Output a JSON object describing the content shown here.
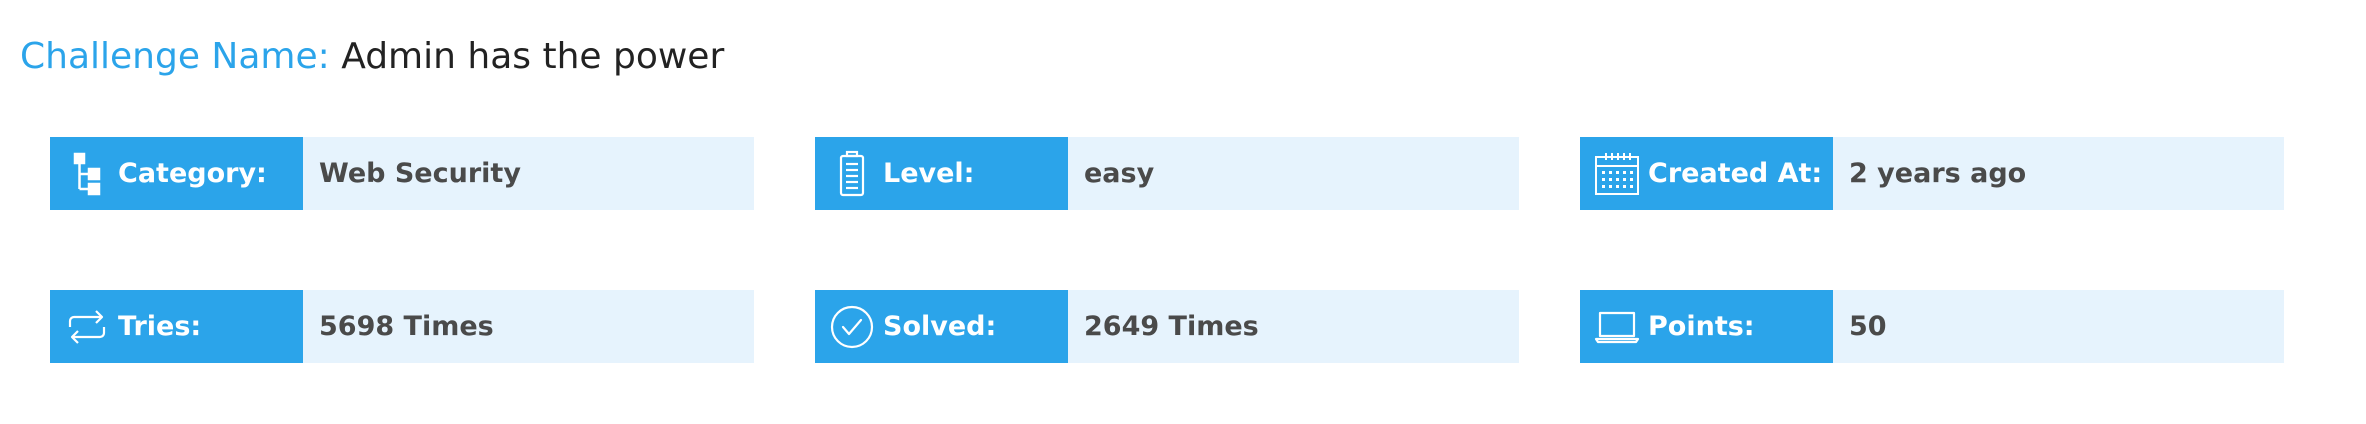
{
  "challenge": {
    "name_label": "Challenge Name:",
    "name_value": " Admin has the power"
  },
  "stats": [
    {
      "label": "Category:",
      "value": "Web Security",
      "icon": "hierarchy-icon"
    },
    {
      "label": "Level:",
      "value": "easy",
      "icon": "battery-icon"
    },
    {
      "label": "Created At:",
      "value": "2 years ago",
      "icon": "calendar-icon"
    },
    {
      "label": "Tries:",
      "value": "5698 Times",
      "icon": "repeat-icon"
    },
    {
      "label": "Solved:",
      "value": "2649 Times",
      "icon": "check-circle-icon"
    },
    {
      "label": "Points:",
      "value": "50",
      "icon": "laptop-icon"
    }
  ],
  "colors": {
    "accent": "#2ba4ea",
    "card_bg": "#e6f3fd",
    "title_text": "#222222",
    "value_text": "#4a4a4a"
  }
}
